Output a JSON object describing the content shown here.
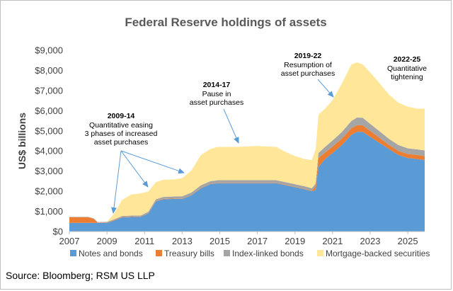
{
  "chart_data": {
    "type": "area",
    "stacked": true,
    "title": "Federal Reserve holdings of assets",
    "ylabel": "US$ billions",
    "xlabel": "",
    "ylim": [
      0,
      9000
    ],
    "yticks": [
      0,
      1000,
      2000,
      3000,
      4000,
      5000,
      6000,
      7000,
      8000,
      9000
    ],
    "ytick_labels": [
      "$0",
      "$1,000",
      "$2,000",
      "$3,000",
      "$4,000",
      "$5,000",
      "$6,000",
      "$7,000",
      "$8,000",
      "$9,000"
    ],
    "xlim": [
      2007,
      2025.9
    ],
    "xticks": [
      2007,
      2009,
      2011,
      2013,
      2015,
      2017,
      2019,
      2021,
      2023,
      2025
    ],
    "xtick_labels": [
      "2007",
      "2009",
      "2011",
      "2013",
      "2015",
      "2017",
      "2019",
      "2021",
      "2023",
      "2025"
    ],
    "x": [
      2007,
      2008,
      2008.3,
      2008.5,
      2009,
      2009.4,
      2009.8,
      2010.3,
      2010.8,
      2011.2,
      2011.6,
      2012,
      2012.6,
      2013,
      2013.5,
      2014,
      2014.5,
      2014.9,
      2016,
      2017,
      2018,
      2018.5,
      2019,
      2019.5,
      2019.9,
      2020.1,
      2020.25,
      2020.6,
      2021,
      2021.5,
      2022,
      2022.3,
      2022.6,
      2023,
      2023.5,
      2024,
      2024.5,
      2025,
      2025.5,
      2025.9
    ],
    "series": [
      {
        "name": "Notes and bonds",
        "color": "#5b9bd5",
        "values": [
          430,
          430,
          430,
          430,
          430,
          550,
          700,
          720,
          730,
          900,
          1500,
          1600,
          1620,
          1620,
          1800,
          2150,
          2350,
          2400,
          2400,
          2400,
          2400,
          2300,
          2200,
          2100,
          2000,
          2050,
          3200,
          3600,
          3900,
          4300,
          4800,
          4950,
          4950,
          4700,
          4400,
          4100,
          3800,
          3650,
          3600,
          3550
        ]
      },
      {
        "name": "Treasury bills",
        "color": "#ed7d31",
        "values": [
          280,
          280,
          200,
          20,
          20,
          20,
          20,
          20,
          20,
          20,
          20,
          20,
          20,
          20,
          20,
          20,
          20,
          20,
          20,
          20,
          20,
          20,
          20,
          20,
          20,
          200,
          450,
          320,
          320,
          320,
          330,
          330,
          330,
          300,
          250,
          200,
          200,
          200,
          200,
          200
        ]
      },
      {
        "name": "Index-linked bonds",
        "color": "#a5a5a5",
        "values": [
          20,
          20,
          20,
          20,
          30,
          40,
          50,
          50,
          50,
          60,
          80,
          100,
          100,
          110,
          120,
          130,
          130,
          130,
          130,
          130,
          130,
          130,
          130,
          130,
          130,
          140,
          250,
          280,
          300,
          330,
          360,
          380,
          370,
          350,
          330,
          300,
          300,
          280,
          280,
          280
        ]
      },
      {
        "name": "Mortgage-backed securities",
        "color": "#ffe699",
        "values": [
          0,
          0,
          0,
          0,
          0,
          300,
          800,
          1050,
          1100,
          1000,
          850,
          850,
          850,
          900,
          1100,
          1500,
          1600,
          1650,
          1650,
          1700,
          1650,
          1500,
          1400,
          1350,
          1400,
          1700,
          1900,
          1900,
          2000,
          2400,
          2800,
          2740,
          2650,
          2550,
          2380,
          2200,
          2100,
          2070,
          2020,
          2070
        ]
      }
    ],
    "legend_position": "bottom",
    "grid": false,
    "annotations": [
      {
        "id": "qe",
        "title": "2009-14",
        "lines": [
          "Quantitative easing",
          "3 phases of increased",
          "asset purchases"
        ]
      },
      {
        "id": "pause",
        "title": "2014-17",
        "lines": [
          "Pause  in",
          "asset purchases"
        ]
      },
      {
        "id": "resume",
        "title": "2019-22",
        "lines": [
          "Resumption of",
          "asset purchases"
        ]
      },
      {
        "id": "qt",
        "title": "2022-25",
        "lines": [
          "Quantitative",
          "tightening"
        ]
      }
    ]
  },
  "footer": {
    "source": "Source: Bloomberg; RSM US LLP"
  }
}
